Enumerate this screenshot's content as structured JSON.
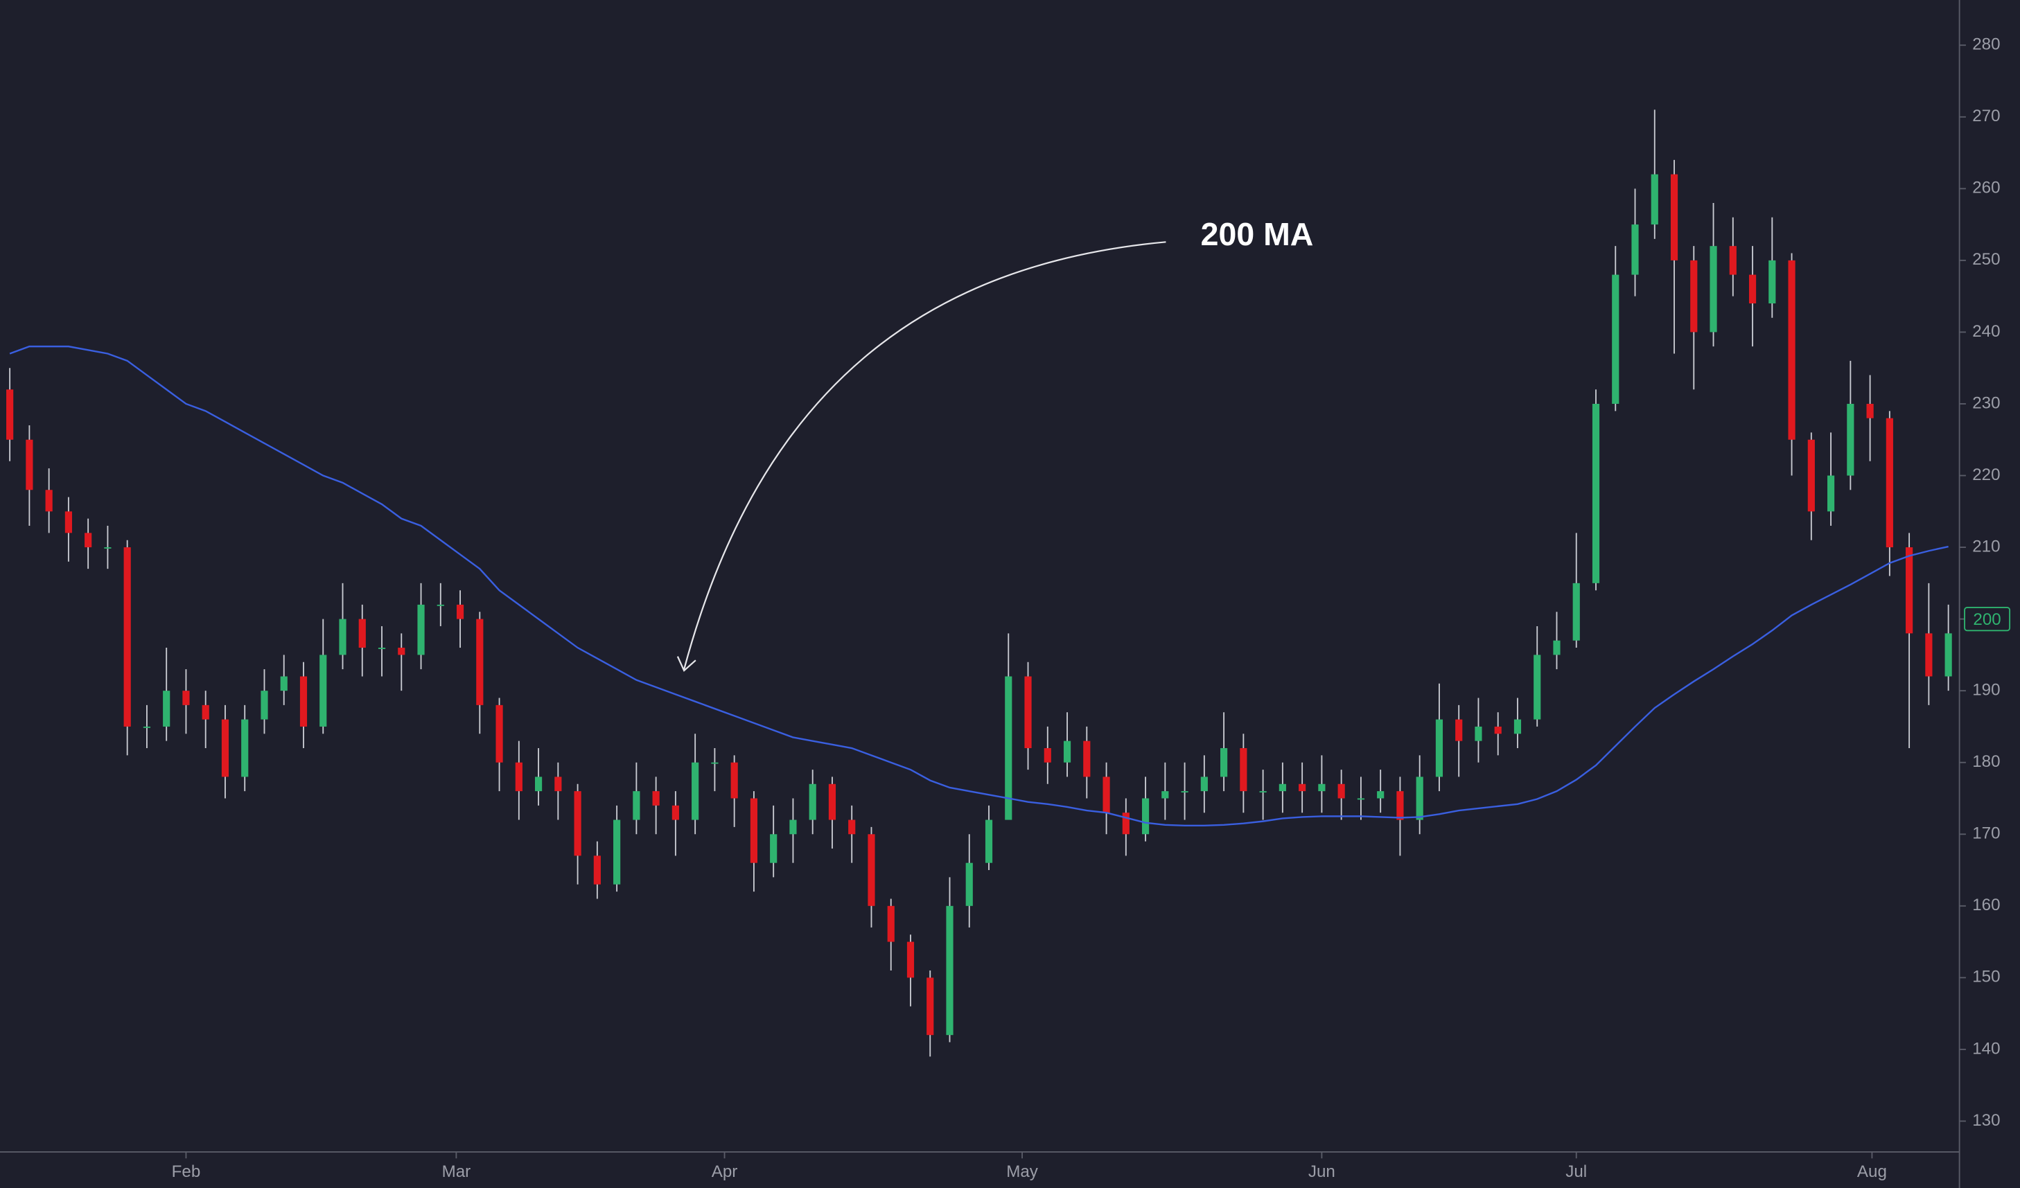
{
  "chart_data": {
    "type": "candlestick",
    "annotation": "200 MA",
    "price_label": 200,
    "up_color": "#2fb36f",
    "down_color": "#e0191f",
    "wick_color": "#c9cbd2",
    "xlim": [
      -0.5,
      99.5
    ],
    "xticks": [
      {
        "value": 9,
        "label": "Feb"
      },
      {
        "value": 22.8,
        "label": "Mar"
      },
      {
        "value": 36.5,
        "label": "Apr"
      },
      {
        "value": 51.7,
        "label": "May"
      },
      {
        "value": 67,
        "label": "Jun"
      },
      {
        "value": 80,
        "label": "Jul"
      },
      {
        "value": 95.1,
        "label": "Aug"
      }
    ],
    "ylim": [
      125.7,
      286.3
    ],
    "yticks": [
      130,
      140,
      150,
      160,
      170,
      180,
      190,
      200,
      210,
      220,
      230,
      240,
      250,
      260,
      270,
      280
    ],
    "open": [
      232,
      225,
      218,
      215,
      212,
      210,
      210,
      185,
      185,
      190,
      188,
      186,
      178,
      186,
      190,
      192,
      185,
      195,
      200,
      196,
      196,
      195,
      202,
      202,
      200,
      188,
      180,
      176,
      178,
      176,
      167,
      163,
      172,
      176,
      174,
      172,
      180,
      180,
      175,
      166,
      170,
      172,
      177,
      172,
      170,
      160,
      155,
      150,
      142,
      160,
      166,
      172,
      192,
      182,
      180,
      183,
      178,
      173,
      170,
      175,
      176,
      176,
      178,
      182,
      176,
      176,
      177,
      176,
      177,
      175,
      175,
      176,
      172,
      178,
      186,
      183,
      185,
      184,
      186,
      195,
      197,
      205,
      230,
      248,
      255,
      262,
      250,
      240,
      252,
      248,
      244,
      250,
      225,
      215,
      220,
      230,
      228,
      210,
      198,
      192
    ],
    "high": [
      235,
      227,
      221,
      217,
      214,
      213,
      211,
      188,
      196,
      193,
      190,
      188,
      188,
      193,
      195,
      194,
      200,
      205,
      202,
      199,
      198,
      205,
      205,
      204,
      201,
      189,
      183,
      182,
      180,
      177,
      169,
      174,
      180,
      178,
      176,
      184,
      182,
      181,
      176,
      174,
      175,
      179,
      178,
      174,
      171,
      161,
      156,
      151,
      164,
      170,
      174,
      198,
      194,
      185,
      187,
      185,
      180,
      175,
      178,
      180,
      180,
      181,
      187,
      184,
      179,
      180,
      180,
      181,
      179,
      178,
      179,
      178,
      181,
      191,
      188,
      189,
      187,
      189,
      199,
      201,
      212,
      232,
      252,
      260,
      271,
      264,
      252,
      258,
      256,
      252,
      256,
      251,
      226,
      226,
      236,
      234,
      229,
      212,
      205,
      202
    ],
    "low": [
      222,
      213,
      212,
      208,
      207,
      207,
      181,
      182,
      183,
      184,
      182,
      175,
      176,
      184,
      188,
      182,
      184,
      193,
      192,
      192,
      190,
      193,
      199,
      196,
      184,
      176,
      172,
      174,
      172,
      163,
      161,
      162,
      170,
      170,
      167,
      170,
      176,
      171,
      162,
      164,
      166,
      170,
      168,
      166,
      157,
      151,
      146,
      139,
      141,
      157,
      165,
      172,
      179,
      177,
      178,
      175,
      170,
      167,
      169,
      172,
      172,
      173,
      176,
      173,
      172,
      173,
      173,
      173,
      172,
      172,
      173,
      167,
      170,
      176,
      178,
      180,
      181,
      182,
      185,
      193,
      196,
      204,
      229,
      245,
      253,
      237,
      232,
      238,
      245,
      238,
      242,
      220,
      211,
      213,
      218,
      222,
      206,
      182,
      188,
      190
    ],
    "close": [
      225,
      218,
      215,
      212,
      210,
      210,
      185,
      185,
      190,
      188,
      186,
      178,
      186,
      190,
      192,
      185,
      195,
      200,
      196,
      196,
      195,
      202,
      202,
      200,
      188,
      180,
      176,
      178,
      176,
      167,
      163,
      172,
      176,
      174,
      172,
      180,
      180,
      175,
      166,
      170,
      172,
      177,
      172,
      170,
      160,
      155,
      150,
      142,
      160,
      166,
      172,
      192,
      182,
      180,
      183,
      178,
      173,
      170,
      175,
      176,
      176,
      178,
      182,
      176,
      176,
      177,
      176,
      177,
      175,
      175,
      176,
      172,
      178,
      186,
      183,
      185,
      184,
      186,
      195,
      197,
      205,
      230,
      248,
      255,
      262,
      250,
      240,
      252,
      248,
      244,
      250,
      225,
      215,
      220,
      230,
      228,
      210,
      198,
      192,
      198
    ],
    "moving_average": {
      "color": "#3a5fe0",
      "values": [
        237,
        238,
        238,
        238,
        237.5,
        237,
        236,
        234,
        232,
        230,
        229,
        227.5,
        226,
        224.5,
        223,
        221.5,
        220,
        219,
        217.5,
        216,
        214,
        213,
        211,
        209,
        207,
        204,
        202,
        200,
        198,
        196,
        194.5,
        193,
        191.5,
        190.5,
        189.5,
        188.5,
        187.5,
        186.5,
        185.5,
        184.5,
        183.5,
        183,
        182.5,
        182,
        181,
        180,
        179,
        177.5,
        176.5,
        176,
        175.5,
        175,
        174.5,
        174.2,
        173.8,
        173.3,
        173,
        172.3,
        171.6,
        171.3,
        171.2,
        171.2,
        171.3,
        171.5,
        171.8,
        172.2,
        172.4,
        172.5,
        172.5,
        172.5,
        172.4,
        172.3,
        172.4,
        172.8,
        173.3,
        173.6,
        173.9,
        174.2,
        174.9,
        176,
        177.6,
        179.6,
        182.3,
        185,
        187.6,
        189.5,
        191.3,
        193,
        194.8,
        196.5,
        198.4,
        200.5,
        202,
        203.4,
        204.8,
        206.3,
        207.8,
        208.8,
        209.5,
        210.1
      ]
    }
  }
}
